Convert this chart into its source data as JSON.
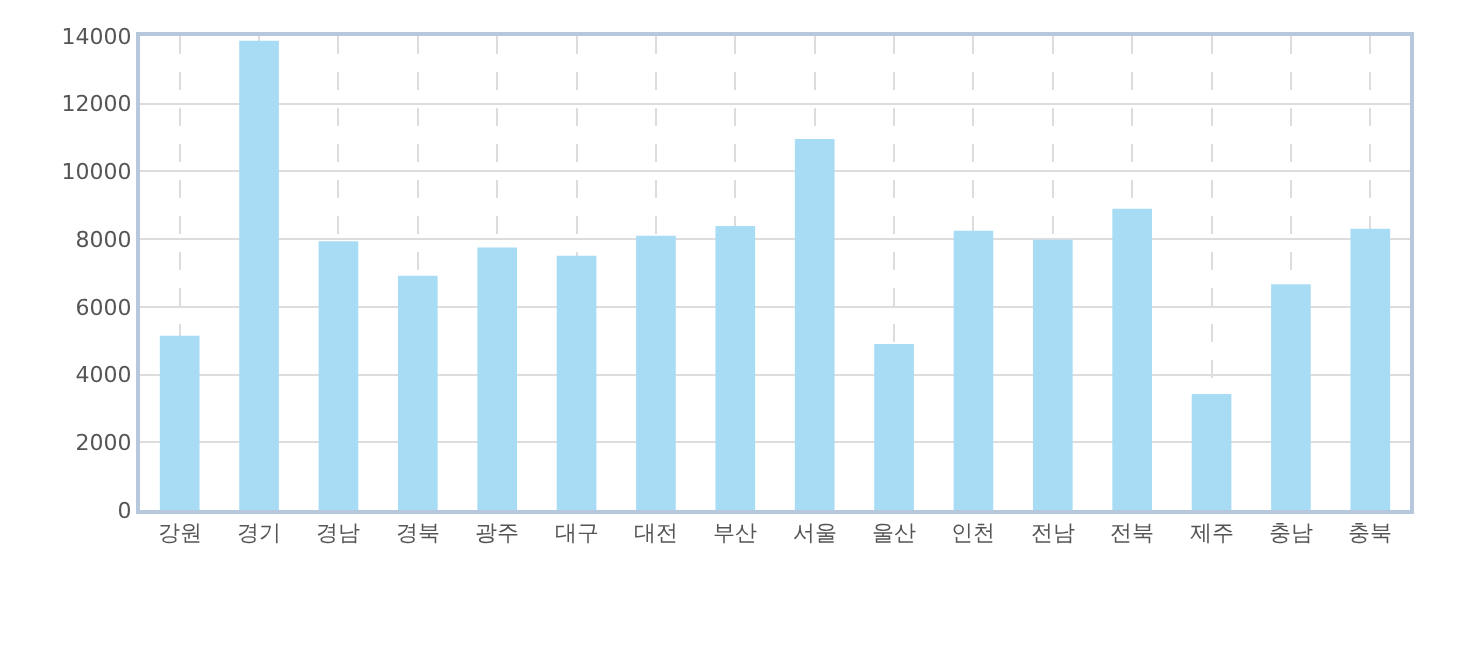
{
  "chart_data": {
    "type": "bar",
    "categories": [
      "강원",
      "경기",
      "경남",
      "경북",
      "광주",
      "대구",
      "대전",
      "부산",
      "서울",
      "울산",
      "인천",
      "전남",
      "전북",
      "제주",
      "충남",
      "충북"
    ],
    "series": [
      {
        "color": "#a8dcf5",
        "values": [
          5150,
          13860,
          7940,
          6920,
          7750,
          7510,
          8100,
          8390,
          10960,
          4900,
          8250,
          7980,
          8900,
          3430,
          6670,
          8310
        ]
      }
    ],
    "ylim": [
      0,
      14000
    ],
    "yticks": [
      0,
      2000,
      4000,
      6000,
      8000,
      10000,
      12000,
      14000
    ],
    "grid": true
  }
}
